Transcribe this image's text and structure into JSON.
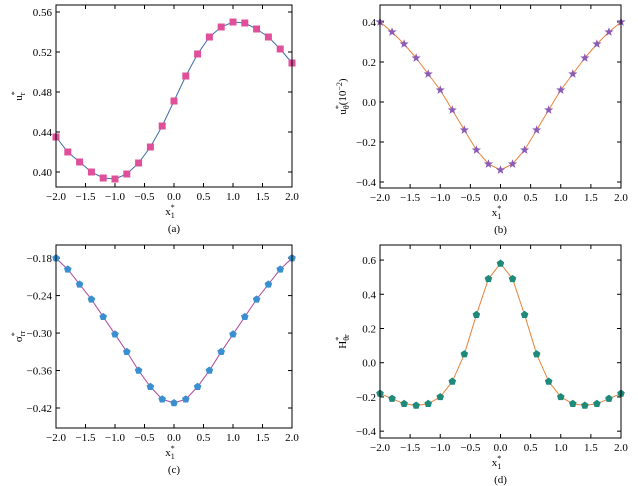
{
  "chart_data": [
    {
      "type": "line",
      "caption": "(a)",
      "xlabel": {
        "main": "x",
        "sup": "*",
        "sub": "1"
      },
      "ylabel": {
        "main": "u",
        "sup": "*",
        "sub": "r"
      },
      "x": [
        -2.0,
        -1.8,
        -1.6,
        -1.4,
        -1.2,
        -1.0,
        -0.8,
        -0.6,
        -0.4,
        -0.2,
        0.0,
        0.2,
        0.4,
        0.6,
        0.8,
        1.0,
        1.2,
        1.4,
        1.6,
        1.8,
        2.0
      ],
      "series": [
        {
          "color": "#3a6fa8",
          "marker_color": "#e0509a",
          "marker": "square",
          "values": [
            0.435,
            0.42,
            0.41,
            0.4,
            0.394,
            0.393,
            0.398,
            0.409,
            0.425,
            0.446,
            0.471,
            0.496,
            0.518,
            0.535,
            0.545,
            0.55,
            0.549,
            0.543,
            0.535,
            0.523,
            0.509
          ]
        }
      ],
      "xlim": [
        -2.0,
        2.0
      ],
      "ylim": [
        0.385,
        0.567
      ],
      "xticks": [
        {
          "value": -2.0,
          "label": "−2.0"
        },
        {
          "value": -1.5,
          "label": "−1.5"
        },
        {
          "value": -1.0,
          "label": "−1.0"
        },
        {
          "value": -0.5,
          "label": "−0.5"
        },
        {
          "value": 0,
          "label": "0.0"
        },
        {
          "value": 0.5,
          "label": "0.5"
        },
        {
          "value": 1.0,
          "label": "1.0"
        },
        {
          "value": 1.5,
          "label": "1.5"
        },
        {
          "value": 2.0,
          "label": "2.0"
        }
      ],
      "yticks": [
        {
          "value": 0.4,
          "label": "0.40"
        },
        {
          "value": 0.44,
          "label": "0.44"
        },
        {
          "value": 0.48,
          "label": "0.48"
        },
        {
          "value": 0.52,
          "label": "0.52"
        },
        {
          "value": 0.56,
          "label": "0.56"
        }
      ]
    },
    {
      "type": "line",
      "caption": "(b)",
      "xlabel": {
        "main": "x",
        "sup": "*",
        "sub": "1"
      },
      "ylabel": {
        "main": "u",
        "sup": "*",
        "sub": "θ",
        "unit": "(10",
        "unit_sup": "−2",
        "unit_end": ")"
      },
      "x": [
        -2.0,
        -1.8,
        -1.6,
        -1.4,
        -1.2,
        -1.0,
        -0.8,
        -0.6,
        -0.4,
        -0.2,
        0.0,
        0.2,
        0.4,
        0.6,
        0.8,
        1.0,
        1.2,
        1.4,
        1.6,
        1.8,
        2.0
      ],
      "series": [
        {
          "color": "#e8833a",
          "marker_color": "#8a5cb8",
          "marker": "star",
          "values": [
            0.4,
            0.35,
            0.29,
            0.22,
            0.14,
            0.06,
            -0.04,
            -0.14,
            -0.24,
            -0.31,
            -0.34,
            -0.31,
            -0.24,
            -0.14,
            -0.04,
            0.06,
            0.14,
            0.22,
            0.29,
            0.35,
            0.4
          ]
        }
      ],
      "xlim": [
        -2.0,
        2.0
      ],
      "ylim": [
        -0.43,
        0.485
      ],
      "xticks": [
        {
          "value": -2.0,
          "label": "−2.0"
        },
        {
          "value": -1.5,
          "label": "−1.5"
        },
        {
          "value": -1.0,
          "label": "−1.0"
        },
        {
          "value": -0.5,
          "label": "−0.5"
        },
        {
          "value": 0,
          "label": "0.0"
        },
        {
          "value": 0.5,
          "label": "0.5"
        },
        {
          "value": 1.0,
          "label": "1.0"
        },
        {
          "value": 1.5,
          "label": "1.5"
        },
        {
          "value": 2.0,
          "label": "2.0"
        }
      ],
      "yticks": [
        {
          "value": -0.4,
          "label": "−0.4"
        },
        {
          "value": -0.2,
          "label": "−0.2"
        },
        {
          "value": 0,
          "label": "0.0"
        },
        {
          "value": 0.2,
          "label": "0.2"
        },
        {
          "value": 0.4,
          "label": "0.4"
        }
      ]
    },
    {
      "type": "line",
      "caption": "(c)",
      "xlabel": {
        "main": "x",
        "sup": "*",
        "sub": "1"
      },
      "ylabel": {
        "main": "σ",
        "sup": "*",
        "sub": "rr"
      },
      "x": [
        -2.0,
        -1.8,
        -1.6,
        -1.4,
        -1.2,
        -1.0,
        -0.8,
        -0.6,
        -0.4,
        -0.2,
        0.0,
        0.2,
        0.4,
        0.6,
        0.8,
        1.0,
        1.2,
        1.4,
        1.6,
        1.8,
        2.0
      ],
      "series": [
        {
          "color": "#b04aa0",
          "marker_color": "#3a8fd0",
          "marker": "pentagon",
          "values": [
            -0.18,
            -0.198,
            -0.222,
            -0.246,
            -0.274,
            -0.302,
            -0.33,
            -0.36,
            -0.386,
            -0.406,
            -0.412,
            -0.406,
            -0.386,
            -0.36,
            -0.33,
            -0.302,
            -0.274,
            -0.246,
            -0.222,
            -0.198,
            -0.18
          ]
        }
      ],
      "xlim": [
        -2.0,
        2.0
      ],
      "ylim": [
        -0.452,
        -0.159
      ],
      "xticks": [
        {
          "value": -2.0,
          "label": "−2.0"
        },
        {
          "value": -1.5,
          "label": "−1.5"
        },
        {
          "value": -1.0,
          "label": "−1.0"
        },
        {
          "value": -0.5,
          "label": "−0.5"
        },
        {
          "value": 0,
          "label": "0.0"
        },
        {
          "value": 0.5,
          "label": "0.5"
        },
        {
          "value": 1.0,
          "label": "1.0"
        },
        {
          "value": 1.5,
          "label": "1.5"
        },
        {
          "value": 2.0,
          "label": "2.0"
        }
      ],
      "yticks": [
        {
          "value": -0.42,
          "label": "−0.42"
        },
        {
          "value": -0.36,
          "label": "−0.36"
        },
        {
          "value": -0.3,
          "label": "−0.30"
        },
        {
          "value": -0.24,
          "label": "−0.24"
        },
        {
          "value": -0.18,
          "label": "−0.18"
        }
      ]
    },
    {
      "type": "line",
      "caption": "(d)",
      "xlabel": {
        "main": "x",
        "sup": "*",
        "sub": "1"
      },
      "ylabel": {
        "main": "H",
        "sup": "*",
        "sub": "θr"
      },
      "x": [
        -2.0,
        -1.8,
        -1.6,
        -1.4,
        -1.2,
        -1.0,
        -0.8,
        -0.6,
        -0.4,
        -0.2,
        0.0,
        0.2,
        0.4,
        0.6,
        0.8,
        1.0,
        1.2,
        1.4,
        1.6,
        1.8,
        2.0
      ],
      "series": [
        {
          "color": "#e8833a",
          "marker_color": "#1f8a7a",
          "marker": "pentagon",
          "values": [
            -0.18,
            -0.21,
            -0.24,
            -0.25,
            -0.24,
            -0.2,
            -0.11,
            0.05,
            0.28,
            0.49,
            0.58,
            0.49,
            0.28,
            0.05,
            -0.11,
            -0.2,
            -0.24,
            -0.25,
            -0.24,
            -0.21,
            -0.18
          ]
        }
      ],
      "xlim": [
        -2.0,
        2.0
      ],
      "ylim": [
        -0.44,
        0.688
      ],
      "xticks": [
        {
          "value": -2.0,
          "label": "−2.0"
        },
        {
          "value": -1.5,
          "label": "−1.5"
        },
        {
          "value": -1.0,
          "label": "−1.0"
        },
        {
          "value": -0.5,
          "label": "−0.5"
        },
        {
          "value": 0,
          "label": "0.0"
        },
        {
          "value": 0.5,
          "label": "0.5"
        },
        {
          "value": 1.0,
          "label": "1.0"
        },
        {
          "value": 1.5,
          "label": "1.5"
        },
        {
          "value": 2.0,
          "label": "2.0"
        }
      ],
      "yticks": [
        {
          "value": -0.4,
          "label": "−0.4"
        },
        {
          "value": -0.2,
          "label": "−0.2"
        },
        {
          "value": 0,
          "label": "0.0"
        },
        {
          "value": 0.2,
          "label": "0.2"
        },
        {
          "value": 0.4,
          "label": "0.4"
        },
        {
          "value": 0.6,
          "label": "0.6"
        }
      ]
    }
  ]
}
